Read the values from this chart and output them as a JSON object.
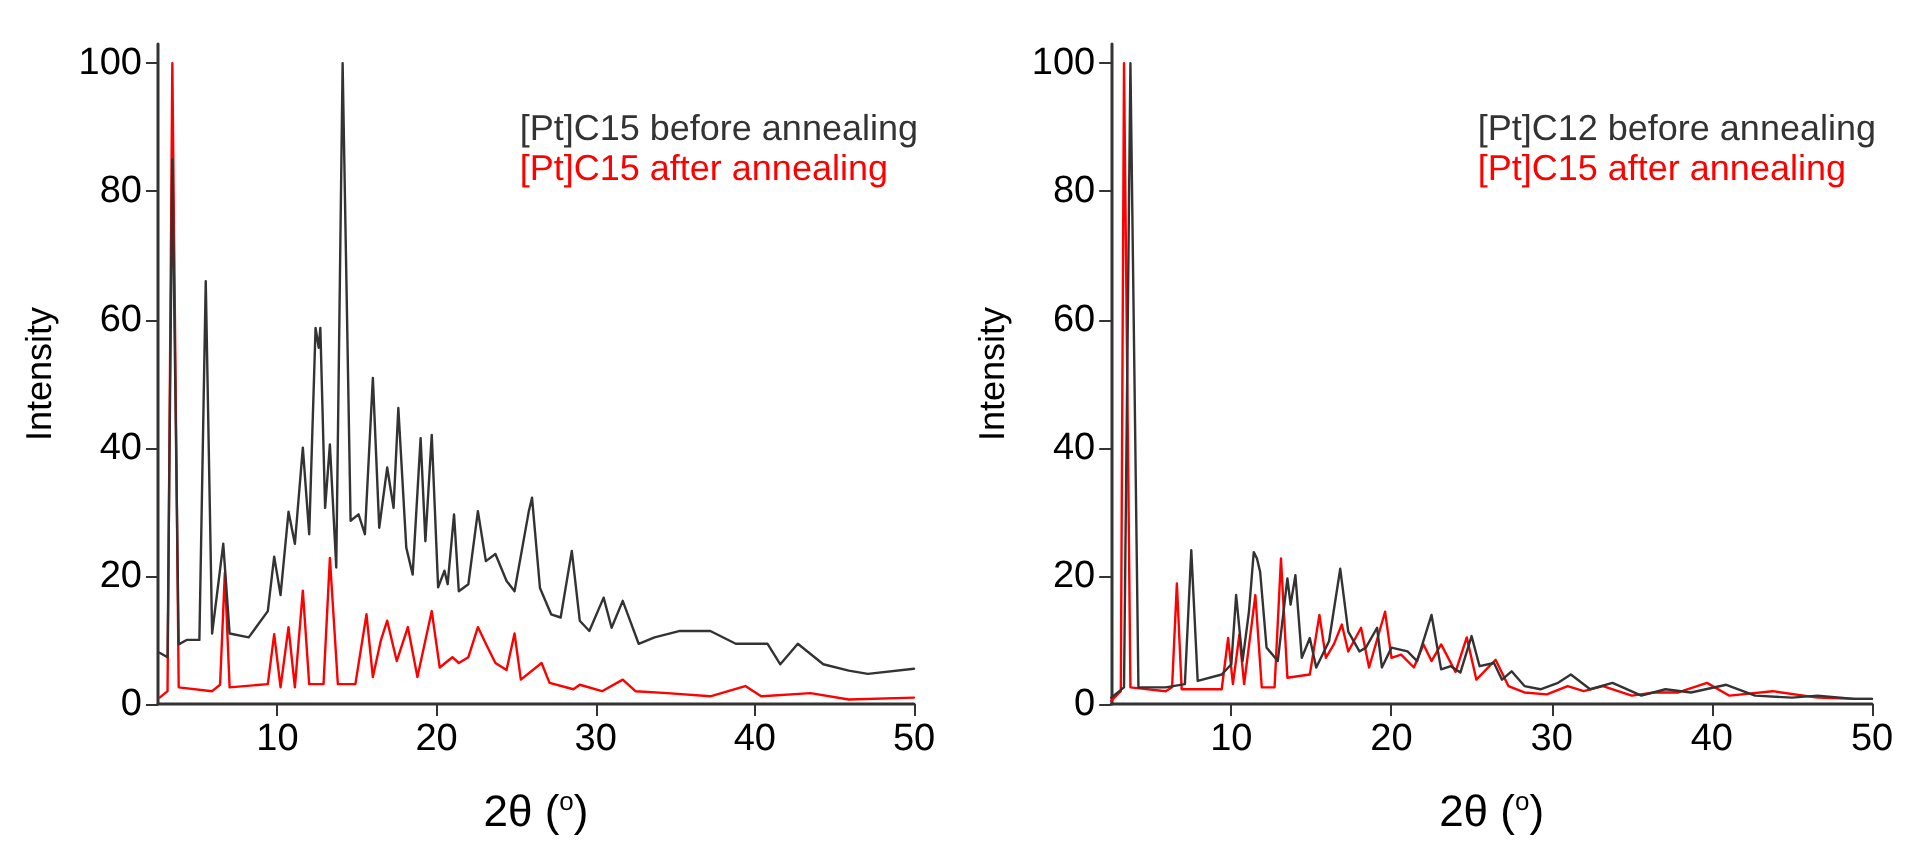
{
  "chart_data": [
    {
      "type": "line",
      "xlabel": "2θ ($^{o}$)",
      "ylabel": "Intensity",
      "xlim": [
        2.5,
        50
      ],
      "ylim": [
        0,
        103
      ],
      "xticks": [
        10,
        20,
        30,
        40,
        50
      ],
      "yticks": [
        0,
        20,
        40,
        60,
        80,
        100
      ],
      "legend": "top right",
      "marker": "none",
      "line_style": "solid",
      "grid": false,
      "series": [
        {
          "name": "[Pt]C15 before annealing",
          "color": "#333333",
          "x": [
            2.6,
            3.1,
            3.4,
            3.8,
            4.3,
            5.1,
            5.5,
            5.9,
            6.6,
            7.0,
            8.2,
            9.4,
            9.8,
            10.2,
            10.7,
            11.1,
            11.6,
            12.0,
            12.4,
            12.6,
            12.7,
            13.0,
            13.3,
            13.7,
            14.1,
            14.6,
            15.1,
            15.5,
            16.0,
            16.4,
            16.9,
            17.3,
            17.6,
            18.1,
            18.5,
            19.0,
            19.3,
            19.7,
            20.1,
            20.5,
            20.7,
            21.1,
            21.4,
            22.0,
            22.6,
            23.1,
            23.7,
            24.4,
            24.9,
            25.8,
            26.0,
            26.5,
            27.2,
            27.8,
            28.5,
            29.0,
            29.6,
            30.5,
            31.0,
            31.7,
            32.7,
            33.7,
            35.3,
            37.2,
            38.8,
            40.8,
            41.6,
            42.7,
            44.3,
            45.9,
            47.1,
            50
          ],
          "values": [
            8,
            7.3,
            85,
            9.3,
            10,
            10,
            66,
            11,
            25,
            11,
            10.4,
            14.5,
            23,
            17,
            30,
            25,
            40,
            26.5,
            58.7,
            55.6,
            58.7,
            30.6,
            40.5,
            21.3,
            100,
            28.6,
            29.6,
            26.5,
            50.9,
            27.5,
            36.9,
            30.6,
            46.2,
            24.4,
            20.2,
            41.5,
            25.4,
            42,
            18.2,
            20.8,
            18.7,
            29.6,
            17.6,
            18.7,
            30.1,
            22.3,
            23.4,
            19.2,
            17.6,
            30.1,
            32.2,
            18.1,
            14,
            13.5,
            23.9,
            13,
            11.4,
            16.6,
            11.9,
            16.1,
            9.4,
            10.4,
            11.4,
            11.4,
            9.4,
            9.4,
            6.2,
            9.4,
            6.2,
            5.2,
            4.7,
            5.5
          ]
        },
        {
          "name": "[Pt]C15 after annealing",
          "color": "#ff0000",
          "x": [
            2.6,
            3.1,
            3.4,
            3.8,
            5.9,
            6.4,
            6.7,
            7.0,
            9.4,
            9.8,
            10.2,
            10.7,
            11.1,
            11.6,
            12.0,
            12.9,
            13.3,
            13.8,
            14.9,
            15.6,
            16.0,
            16.5,
            16.9,
            17.5,
            18.2,
            18.8,
            19.7,
            20.2,
            21.0,
            21.4,
            22.0,
            22.6,
            23.1,
            23.7,
            24.4,
            24.9,
            25.3,
            26.6,
            27.1,
            28.6,
            29.0,
            30.4,
            31.7,
            32.5,
            34.5,
            37.2,
            39.4,
            40.4,
            43.5,
            45.9,
            50
          ],
          "values": [
            1,
            2,
            100,
            2.6,
            2,
            3,
            20.5,
            2.6,
            3.1,
            10.9,
            2.6,
            12,
            2.6,
            17.7,
            3.1,
            3.1,
            22.8,
            3.1,
            3.1,
            14,
            4.2,
            9.9,
            13,
            6.7,
            12,
            4.2,
            14.5,
            5.7,
            7.3,
            6.4,
            7.3,
            12,
            9.4,
            6.4,
            5.3,
            11,
            3.8,
            6.4,
            3.3,
            2.3,
            3,
            2,
            3.8,
            2,
            1.7,
            1.2,
            2.8,
            1.2,
            1.7,
            0.7,
            1
          ]
        }
      ]
    },
    {
      "type": "line",
      "xlabel": "2θ ($^{o}$)",
      "ylabel": "Intensity",
      "xlim": [
        2.5,
        50
      ],
      "ylim": [
        0,
        103
      ],
      "xticks": [
        10,
        20,
        30,
        40,
        50
      ],
      "yticks": [
        0,
        20,
        40,
        60,
        80,
        100
      ],
      "legend": "top right",
      "marker": "none",
      "line_style": "solid",
      "grid": false,
      "series": [
        {
          "name": "[Pt]C12 before annealing",
          "color": "#333333",
          "x": [
            2.5,
            3.3,
            3.7,
            4.2,
            5.9,
            7.1,
            7.5,
            7.9,
            9.4,
            10.0,
            10.3,
            10.7,
            11.1,
            11.4,
            11.6,
            11.8,
            12.2,
            12.9,
            13.5,
            13.7,
            14.0,
            14.4,
            14.9,
            15.3,
            16.1,
            16.8,
            17.3,
            18.0,
            18.4,
            19.1,
            19.4,
            20.0,
            21.0,
            21.6,
            22.5,
            23.1,
            23.7,
            24.3,
            25.0,
            25.5,
            26.4,
            26.9,
            27.5,
            28.3,
            29.3,
            30.4,
            31.2,
            32.4,
            33.8,
            35.6,
            37.1,
            38.7,
            40.9,
            42.7,
            45.0,
            46.6,
            48.9,
            50
          ],
          "values": [
            1,
            2.6,
            100,
            2.6,
            2.6,
            3.1,
            24,
            3.6,
            4.6,
            6.2,
            17,
            6.7,
            14.4,
            23.7,
            22.7,
            20.6,
            8.8,
            6.7,
            19.6,
            15.5,
            20.1,
            7.2,
            10.3,
            5.7,
            9.8,
            21.1,
            11.3,
            8.2,
            8.8,
            11.9,
            5.7,
            8.8,
            8.2,
            6.7,
            13.9,
            5.4,
            5.9,
            4.9,
            10.6,
            5.9,
            6.4,
            3.8,
            5.1,
            2.8,
            2.3,
            3.3,
            4.6,
            2.3,
            3.3,
            1.3,
            2.3,
            1.8,
            3,
            1.3,
            1,
            1.3,
            0.8,
            0.8
          ]
        },
        {
          "name": "[Pt]C15 after annealing",
          "color": "#ff0000",
          "x": [
            2.5,
            3.1,
            3.3,
            3.7,
            5.9,
            6.3,
            6.6,
            6.9,
            9.4,
            9.8,
            10.1,
            10.5,
            10.8,
            11.5,
            11.9,
            12.7,
            13.1,
            13.5,
            14.9,
            15.5,
            15.9,
            16.4,
            16.9,
            17.3,
            18.1,
            18.6,
            19.6,
            20.0,
            20.6,
            21.4,
            22.0,
            22.5,
            23.1,
            24.0,
            24.7,
            25.3,
            26.5,
            27.3,
            28.3,
            29.7,
            31.0,
            32.0,
            33.2,
            35.0,
            36.4,
            37.9,
            39.7,
            41.1,
            43.8,
            46.6,
            48.9,
            50
          ],
          "values": [
            0.5,
            2,
            100,
            2.6,
            2,
            2.6,
            18.8,
            2.3,
            2.3,
            10.3,
            3.1,
            10.8,
            3.1,
            17,
            2.6,
            2.6,
            22.7,
            4.1,
            4.6,
            13.9,
            7.2,
            9.3,
            12.4,
            8.2,
            11.9,
            5.7,
            14.4,
            7.2,
            7.7,
            5.7,
            9.3,
            6.7,
            9.3,
            5,
            10.4,
            3.8,
            6.9,
            2.8,
            1.8,
            1.5,
            2.8,
            2,
            2.8,
            1.3,
            1.8,
            1.8,
            3.3,
            1.3,
            2,
            1,
            0.8,
            0.8
          ]
        }
      ]
    }
  ]
}
